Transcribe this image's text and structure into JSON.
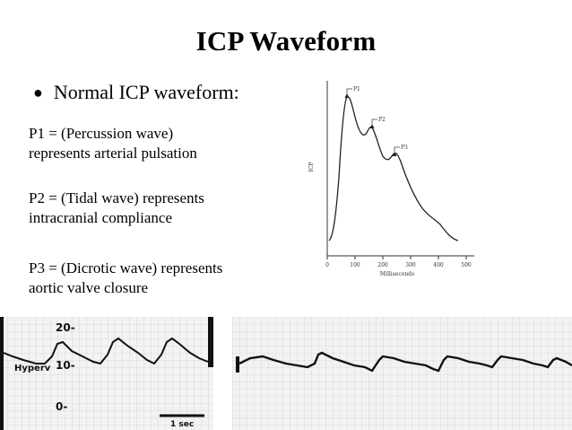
{
  "slide": {
    "title": "ICP Waveform",
    "bullet": "Normal ICP waveform:",
    "p1": {
      "line1": "P1 = (Percussion wave)",
      "line2": "represents arterial pulsation"
    },
    "p2": {
      "line1": "P2 = (Tidal wave) represents",
      "line2": "intracranial compliance"
    },
    "p3": {
      "line1": "P3 = (Dicrotic wave) represents",
      "line2": "aortic valve closure"
    }
  },
  "graph": {
    "ylabel": "ICP",
    "xlabel": "Milliseconds",
    "xticks": [
      "0",
      "100",
      "200",
      "300",
      "400",
      "500"
    ],
    "peaks": [
      "P1",
      "P2",
      "P3"
    ]
  },
  "strip_left": {
    "ticks": [
      "20-",
      "10-",
      "0-"
    ],
    "label": "Hyperv",
    "scale": "1 sec"
  },
  "colors": {
    "trace": "#1a1a1a",
    "grid": "#bdbdbd",
    "paper": "#f2f2f2"
  }
}
